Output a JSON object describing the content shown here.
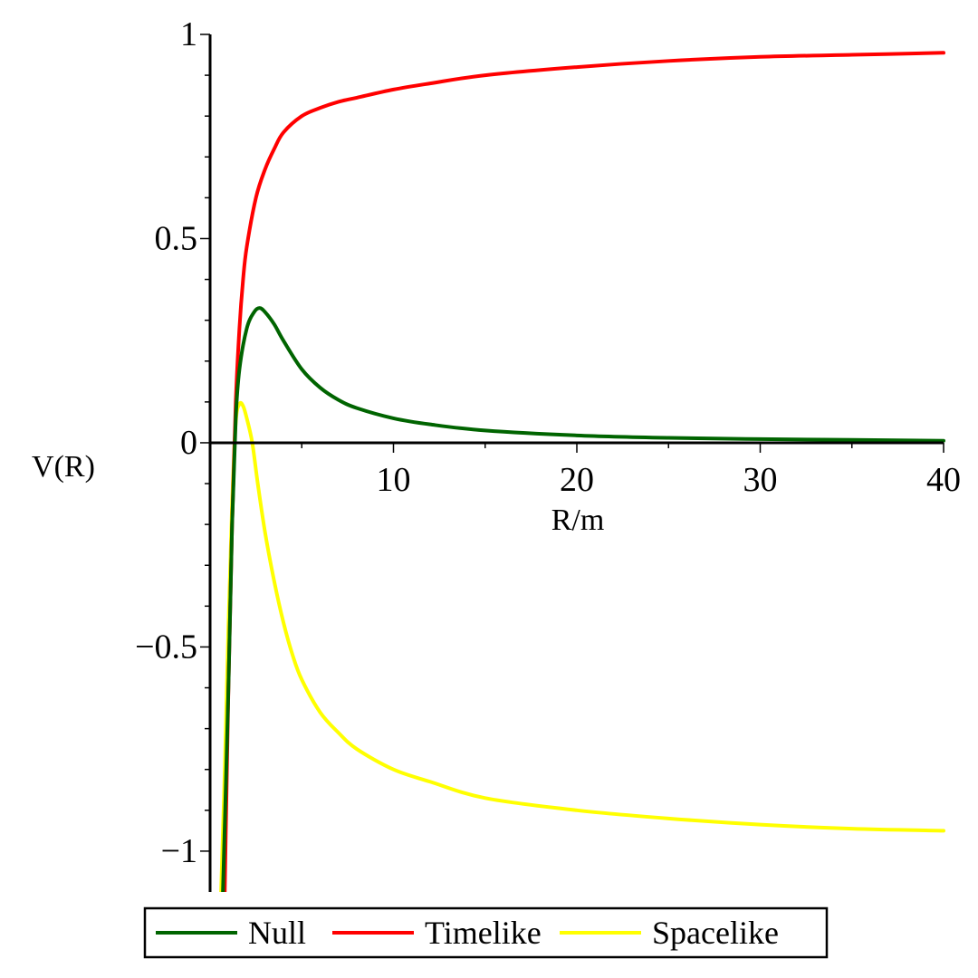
{
  "chart_data": {
    "type": "line",
    "title": "",
    "xlabel": "R/m",
    "ylabel": "V(R)",
    "xlim": [
      0,
      40
    ],
    "ylim": [
      -1.1,
      1.0
    ],
    "x_ticks": [
      10,
      20,
      30,
      40
    ],
    "x_tick_labels": [
      "10",
      "20",
      "30",
      "40"
    ],
    "y_ticks": [
      1,
      0.5,
      0,
      -0.5,
      -1
    ],
    "y_tick_labels": [
      "1",
      "0.5",
      "0",
      "−0.5",
      "−1"
    ],
    "grid": false,
    "legend_position": "bottom",
    "series": [
      {
        "name": "Null",
        "color": "#006400",
        "x": [
          0.7,
          1.0,
          1.2,
          1.4,
          1.6,
          2.0,
          2.4,
          2.7,
          3.0,
          3.5,
          4.0,
          5.0,
          6.0,
          7.0,
          8.0,
          10.0,
          12.0,
          15.0,
          20.0,
          25.0,
          30.0,
          35.0,
          40.0
        ],
        "values": [
          -1.1,
          -0.6,
          -0.2,
          0.06,
          0.18,
          0.28,
          0.32,
          0.33,
          0.32,
          0.29,
          0.25,
          0.18,
          0.135,
          0.105,
          0.085,
          0.06,
          0.045,
          0.03,
          0.018,
          0.012,
          0.009,
          0.007,
          0.005
        ]
      },
      {
        "name": "Timelike",
        "color": "#ff0000",
        "x": [
          0.8,
          1.0,
          1.2,
          1.4,
          1.6,
          1.8,
          2.0,
          2.5,
          3.0,
          3.5,
          4.0,
          5.0,
          6.0,
          7.0,
          8.0,
          10.0,
          12.0,
          15.0,
          20.0,
          25.0,
          30.0,
          35.0,
          40.0
        ],
        "values": [
          -1.1,
          -0.6,
          -0.2,
          0.1,
          0.28,
          0.4,
          0.48,
          0.6,
          0.67,
          0.72,
          0.76,
          0.8,
          0.82,
          0.835,
          0.845,
          0.865,
          0.88,
          0.9,
          0.92,
          0.935,
          0.945,
          0.95,
          0.955
        ]
      },
      {
        "name": "Spacelike",
        "color": "#ffff00",
        "x": [
          0.6,
          0.8,
          1.0,
          1.2,
          1.4,
          1.6,
          1.8,
          2.0,
          2.3,
          2.6,
          3.0,
          3.5,
          4.0,
          4.5,
          5.0,
          6.0,
          7.0,
          8.0,
          10.0,
          12.0,
          15.0,
          20.0,
          25.0,
          30.0,
          35.0,
          40.0
        ],
        "values": [
          -1.1,
          -0.8,
          -0.45,
          -0.15,
          0.05,
          0.095,
          0.09,
          0.06,
          0.0,
          -0.1,
          -0.22,
          -0.34,
          -0.44,
          -0.52,
          -0.58,
          -0.66,
          -0.71,
          -0.75,
          -0.8,
          -0.83,
          -0.87,
          -0.9,
          -0.92,
          -0.935,
          -0.945,
          -0.95
        ]
      }
    ]
  }
}
